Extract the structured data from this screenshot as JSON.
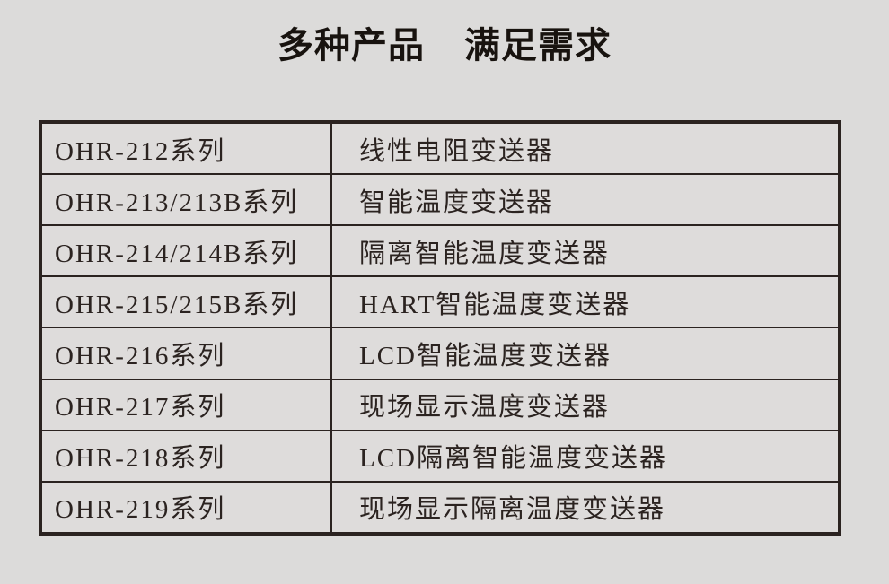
{
  "title": {
    "part1": "多种产品",
    "part2": "满足需求"
  },
  "colors": {
    "background": "#dcdbda",
    "ink": "#2b2320",
    "title_ink": "#18130f"
  },
  "table": {
    "columns": [
      "model",
      "description"
    ],
    "rows": [
      {
        "model": "OHR-212系列",
        "description": "线性电阻变送器"
      },
      {
        "model": "OHR-213/213B系列",
        "description": "智能温度变送器"
      },
      {
        "model": "OHR-214/214B系列",
        "description": "隔离智能温度变送器"
      },
      {
        "model": "OHR-215/215B系列",
        "description": "HART智能温度变送器"
      },
      {
        "model": "OHR-216系列",
        "description": "LCD智能温度变送器"
      },
      {
        "model": "OHR-217系列",
        "description": "现场显示温度变送器"
      },
      {
        "model": "OHR-218系列",
        "description": "LCD隔离智能温度变送器"
      },
      {
        "model": "OHR-219系列",
        "description": "现场显示隔离温度变送器"
      }
    ]
  }
}
